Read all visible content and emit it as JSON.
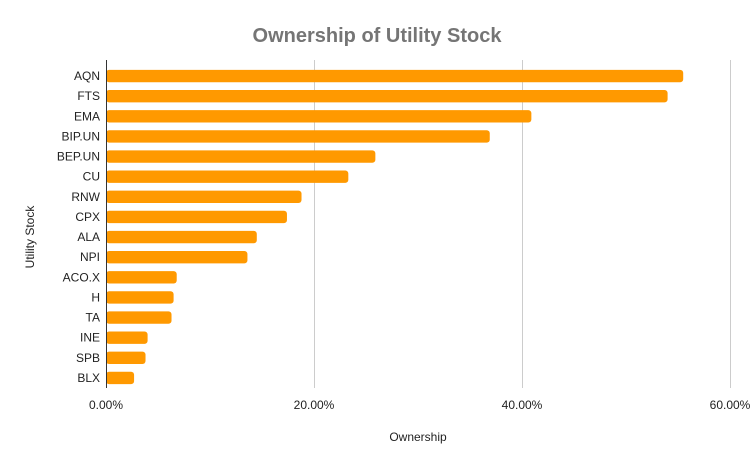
{
  "chart_data": {
    "type": "bar",
    "orientation": "horizontal",
    "title": "Ownership of Utility Stock",
    "xlabel": "Ownership",
    "ylabel": "Utility Stock",
    "categories": [
      "AQN",
      "FTS",
      "EMA",
      "BIP.UN",
      "BEP.UN",
      "CU",
      "RNW",
      "CPX",
      "ALA",
      "NPI",
      "ACO.X",
      "H",
      "TA",
      "INE",
      "SPB",
      "BLX"
    ],
    "values": [
      0.555,
      0.54,
      0.409,
      0.369,
      0.259,
      0.233,
      0.188,
      0.174,
      0.145,
      0.136,
      0.068,
      0.065,
      0.063,
      0.04,
      0.038,
      0.027
    ],
    "xlim": [
      0,
      0.6
    ],
    "xticks": [
      0,
      0.2,
      0.4,
      0.6
    ],
    "xtick_labels": [
      "0.00%",
      "20.00%",
      "40.00%",
      "60.00%"
    ],
    "grid": true,
    "legend": "none",
    "bar_color": "#ff9900"
  }
}
